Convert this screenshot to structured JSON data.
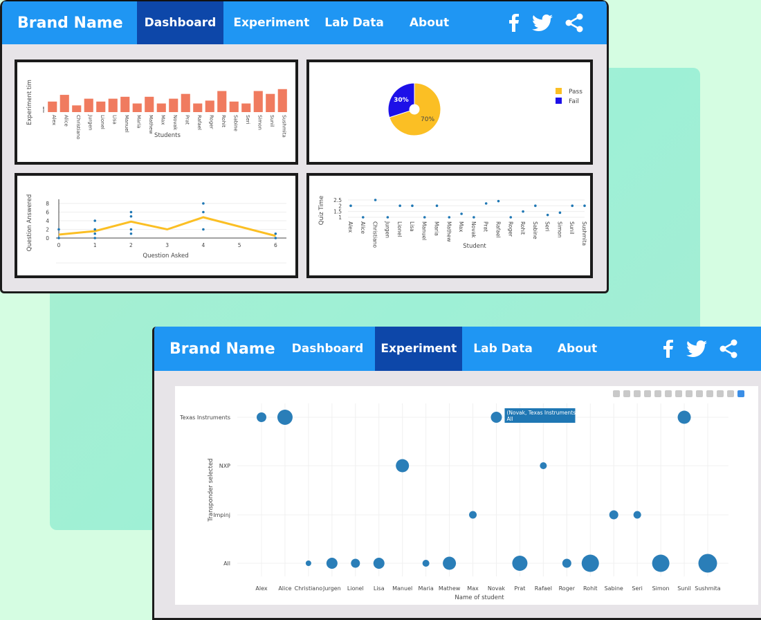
{
  "colors": {
    "nav_bg": "#1f96f3",
    "nav_active": "#0d47a9",
    "bar": "#f07b5f",
    "pie_pass": "#fbbf24",
    "pie_fail": "#1d10e8",
    "line": "#fbbf24",
    "dot": "#1f77b4"
  },
  "window1": {
    "nav": {
      "brand": "Brand Name",
      "items": [
        "Dashboard",
        "Experiment",
        "Lab Data",
        "About"
      ],
      "active": 0,
      "icons": [
        "facebook-icon",
        "twitter-icon",
        "share-icon"
      ]
    }
  },
  "window2": {
    "nav": {
      "brand": "Brand Name",
      "items": [
        "Dashboard",
        "Experiment",
        "Lab Data",
        "About"
      ],
      "active": 1,
      "icons": [
        "facebook-icon",
        "twitter-icon",
        "share-icon"
      ]
    }
  },
  "chart_data": [
    {
      "type": "bar",
      "categories": [
        "Alex",
        "Alice",
        "Christiano",
        "Jurgen",
        "Lionel",
        "Lisa",
        "Manuel",
        "Maria",
        "Mathew",
        "Max",
        "Novak",
        "Prat",
        "Rafael",
        "Roger",
        "Rohit",
        "Sabine",
        "Seri",
        "Simon",
        "Sunil",
        "Sushmita"
      ],
      "values": [
        5.5,
        9,
        3.5,
        7,
        5.5,
        7,
        8,
        4.5,
        8,
        4.5,
        7,
        9.5,
        4.5,
        6,
        11,
        5.5,
        4.5,
        11,
        9.5,
        12
      ],
      "ylim": [
        0,
        13
      ],
      "yticks": [
        "0",
        "2",
        "4",
        "6",
        "8"
      ],
      "xlabel": "Students",
      "ylabel": "Experiment tim"
    },
    {
      "type": "pie",
      "labels": [
        "Pass",
        "Fail"
      ],
      "values": [
        70,
        30
      ],
      "slice_labels": [
        "70%",
        "30%"
      ],
      "legend": "top-right"
    },
    {
      "type": "scatter",
      "x": [
        0,
        0,
        1,
        1,
        1,
        1,
        2,
        2,
        2,
        2,
        4,
        4,
        4,
        6,
        6
      ],
      "y": [
        0,
        2,
        0,
        1,
        2,
        4,
        1,
        2,
        5,
        6,
        2,
        6,
        8,
        0,
        1
      ],
      "line_x": [
        0,
        1,
        2,
        3,
        4,
        6
      ],
      "line_y": [
        0.8,
        1.6,
        3.8,
        2,
        4.8,
        0.5
      ],
      "xlim": [
        0,
        6.3
      ],
      "ylim": [
        0,
        8
      ],
      "xticks": [
        "0",
        "1",
        "2",
        "3",
        "4",
        "5",
        "6"
      ],
      "yticks": [
        "0",
        "2",
        "4",
        "6",
        "8"
      ],
      "xlabel": "Question Asked",
      "ylabel": "Question Answered"
    },
    {
      "type": "scatter",
      "categories": [
        "Alex",
        "Alice",
        "Christiano",
        "Jurgen",
        "Lionel",
        "Lisa",
        "Manuel",
        "Maria",
        "Mathew",
        "Max",
        "Novak",
        "Prat",
        "Rafael",
        "Roger",
        "Rohit",
        "Sabine",
        "Seri",
        "Simon",
        "Sunil",
        "Sushmita"
      ],
      "values": [
        2,
        1,
        2.5,
        1,
        2,
        2,
        1,
        2,
        1,
        1.3,
        1,
        2.2,
        2.4,
        1,
        1.5,
        2,
        1.2,
        1.4,
        2,
        2
      ],
      "ylim": [
        1,
        2.5
      ],
      "yticks": [
        "1",
        "1.5",
        "2",
        "2.5"
      ],
      "xlabel": "Student",
      "ylabel": "Quiz Time"
    },
    {
      "type": "scatter",
      "categories": [
        "Alex",
        "Alice",
        "Christiano",
        "Jurgen",
        "Lionel",
        "Lisa",
        "Manuel",
        "Maria",
        "Mathew",
        "Max",
        "Novak",
        "Prat",
        "Rafael",
        "Roger",
        "Rohit",
        "Sabine",
        "Seri",
        "Simon",
        "Sunil",
        "Sushmita"
      ],
      "y_categories": [
        "All",
        "Impinj",
        "NXP",
        "Texas Instruments"
      ],
      "points": [
        {
          "x": "Alex",
          "y": "Texas Instruments",
          "size": 7
        },
        {
          "x": "Alice",
          "y": "Texas Instruments",
          "size": 11
        },
        {
          "x": "Novak",
          "y": "Texas Instruments",
          "size": 8
        },
        {
          "x": "Sunil",
          "y": "Texas Instruments",
          "size": 9.5
        },
        {
          "x": "Manuel",
          "y": "NXP",
          "size": 9.5
        },
        {
          "x": "Rafael",
          "y": "NXP",
          "size": 5
        },
        {
          "x": "Max",
          "y": "Impinj",
          "size": 5.5
        },
        {
          "x": "Sabine",
          "y": "Impinj",
          "size": 6.5
        },
        {
          "x": "Seri",
          "y": "Impinj",
          "size": 5.5
        },
        {
          "x": "Christiano",
          "y": "All",
          "size": 4
        },
        {
          "x": "Jurgen",
          "y": "All",
          "size": 8
        },
        {
          "x": "Lionel",
          "y": "All",
          "size": 6.5
        },
        {
          "x": "Lisa",
          "y": "All",
          "size": 8
        },
        {
          "x": "Maria",
          "y": "All",
          "size": 5
        },
        {
          "x": "Mathew",
          "y": "All",
          "size": 9.5
        },
        {
          "x": "Prat",
          "y": "All",
          "size": 11
        },
        {
          "x": "Roger",
          "y": "All",
          "size": 6.5
        },
        {
          "x": "Rohit",
          "y": "All",
          "size": 12.5
        },
        {
          "x": "Simon",
          "y": "All",
          "size": 12.5
        },
        {
          "x": "Sushmita",
          "y": "All",
          "size": 13.5
        }
      ],
      "tooltip": {
        "line1": "(Novak, Texas Instruments)",
        "line2": "All"
      },
      "xlabel": "Name of student",
      "ylabel": "Transponder selected"
    }
  ]
}
